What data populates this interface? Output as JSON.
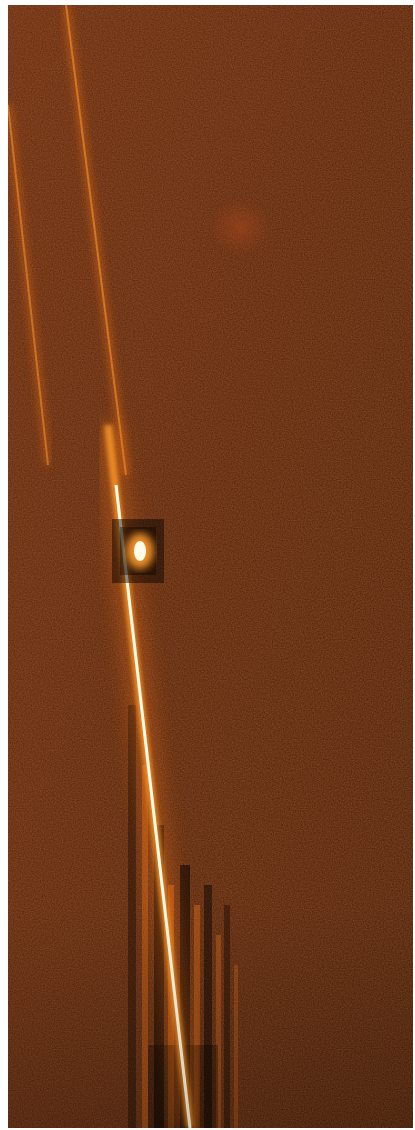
{
  "image": {
    "kind": "false-color astronomical exposure",
    "colors": {
      "background": "#5a1f0a",
      "background_dark": "#3a1204",
      "streak_core": "#fffbe8",
      "streak_glow": "#ff9a2a",
      "glow": "#ff7a18",
      "diffuse_patch": "#a8461a"
    },
    "features": [
      "bright-diagonal-streak",
      "faint-diagonal-streak-left",
      "faint-diagonal-streak-upper",
      "bright-knot",
      "diffuse-patch",
      "vertical-bleed-columns"
    ]
  }
}
